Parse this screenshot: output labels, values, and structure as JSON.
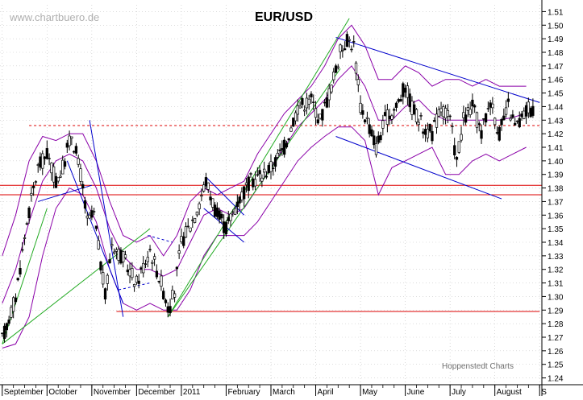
{
  "watermark": "www.chartbuero.de",
  "credit": "Hoppenstedt Charts",
  "chart_data": {
    "type": "candlestick",
    "title": "EUR/USD",
    "xlabel": "",
    "ylabel": "",
    "ylim": [
      1.235,
      1.515
    ],
    "y_ticks": [
      1.24,
      1.25,
      1.26,
      1.27,
      1.28,
      1.29,
      1.3,
      1.31,
      1.32,
      1.33,
      1.34,
      1.35,
      1.36,
      1.37,
      1.38,
      1.39,
      1.4,
      1.41,
      1.42,
      1.43,
      1.44,
      1.45,
      1.46,
      1.47,
      1.48,
      1.49,
      1.5,
      1.51
    ],
    "x_months": [
      {
        "label": "September",
        "t": 0
      },
      {
        "label": "October",
        "t": 1
      },
      {
        "label": "November",
        "t": 2
      },
      {
        "label": "December",
        "t": 3
      },
      {
        "label": "2011",
        "t": 4
      },
      {
        "label": "February",
        "t": 5
      },
      {
        "label": "March",
        "t": 6
      },
      {
        "label": "April",
        "t": 7
      },
      {
        "label": "May",
        "t": 8
      },
      {
        "label": "June",
        "t": 9
      },
      {
        "label": "July",
        "t": 10
      },
      {
        "label": "August",
        "t": 11
      },
      {
        "label": "S",
        "t": 12
      }
    ],
    "x_range": [
      -0.05,
      12.05
    ],
    "grid": true,
    "price_path": [
      [
        0.0,
        1.268
      ],
      [
        0.3,
        1.3
      ],
      [
        0.55,
        1.355
      ],
      [
        0.8,
        1.395
      ],
      [
        1.0,
        1.405
      ],
      [
        1.2,
        1.385
      ],
      [
        1.35,
        1.395
      ],
      [
        1.55,
        1.42
      ],
      [
        1.75,
        1.39
      ],
      [
        1.9,
        1.355
      ],
      [
        2.05,
        1.36
      ],
      [
        2.3,
        1.3
      ],
      [
        2.45,
        1.34
      ],
      [
        2.75,
        1.325
      ],
      [
        3.0,
        1.31
      ],
      [
        3.3,
        1.335
      ],
      [
        3.55,
        1.31
      ],
      [
        3.72,
        1.29
      ],
      [
        3.85,
        1.305
      ],
      [
        4.0,
        1.34
      ],
      [
        4.3,
        1.36
      ],
      [
        4.55,
        1.385
      ],
      [
        4.8,
        1.36
      ],
      [
        5.0,
        1.35
      ],
      [
        5.25,
        1.37
      ],
      [
        5.55,
        1.385
      ],
      [
        5.8,
        1.39
      ],
      [
        6.0,
        1.395
      ],
      [
        6.3,
        1.41
      ],
      [
        6.6,
        1.44
      ],
      [
        6.9,
        1.445
      ],
      [
        7.1,
        1.43
      ],
      [
        7.35,
        1.455
      ],
      [
        7.55,
        1.48
      ],
      [
        7.7,
        1.49
      ],
      [
        7.85,
        1.485
      ],
      [
        8.0,
        1.44
      ],
      [
        8.15,
        1.43
      ],
      [
        8.35,
        1.41
      ],
      [
        8.55,
        1.43
      ],
      [
        8.8,
        1.44
      ],
      [
        9.0,
        1.455
      ],
      [
        9.15,
        1.44
      ],
      [
        9.4,
        1.425
      ],
      [
        9.6,
        1.42
      ],
      [
        9.8,
        1.44
      ],
      [
        10.0,
        1.43
      ],
      [
        10.15,
        1.4
      ],
      [
        10.3,
        1.43
      ],
      [
        10.5,
        1.44
      ],
      [
        10.7,
        1.42
      ],
      [
        10.9,
        1.445
      ],
      [
        11.1,
        1.42
      ],
      [
        11.3,
        1.44
      ],
      [
        11.45,
        1.425
      ],
      [
        11.6,
        1.43
      ],
      [
        11.75,
        1.44
      ],
      [
        11.9,
        1.435
      ]
    ],
    "upper_band": [
      [
        0.0,
        1.33
      ],
      [
        0.3,
        1.36
      ],
      [
        0.6,
        1.4
      ],
      [
        0.9,
        1.418
      ],
      [
        1.2,
        1.415
      ],
      [
        1.5,
        1.42
      ],
      [
        1.8,
        1.42
      ],
      [
        2.1,
        1.4
      ],
      [
        2.4,
        1.37
      ],
      [
        2.7,
        1.345
      ],
      [
        3.0,
        1.34
      ],
      [
        3.3,
        1.345
      ],
      [
        3.6,
        1.33
      ],
      [
        3.9,
        1.345
      ],
      [
        4.2,
        1.37
      ],
      [
        4.5,
        1.38
      ],
      [
        4.8,
        1.375
      ],
      [
        5.1,
        1.38
      ],
      [
        5.4,
        1.385
      ],
      [
        5.7,
        1.405
      ],
      [
        6.0,
        1.42
      ],
      [
        6.3,
        1.435
      ],
      [
        6.6,
        1.445
      ],
      [
        6.9,
        1.455
      ],
      [
        7.2,
        1.47
      ],
      [
        7.5,
        1.49
      ],
      [
        7.8,
        1.5
      ],
      [
        8.1,
        1.485
      ],
      [
        8.4,
        1.46
      ],
      [
        8.7,
        1.46
      ],
      [
        9.0,
        1.47
      ],
      [
        9.3,
        1.465
      ],
      [
        9.6,
        1.455
      ],
      [
        9.9,
        1.46
      ],
      [
        10.2,
        1.46
      ],
      [
        10.5,
        1.455
      ],
      [
        10.8,
        1.46
      ],
      [
        11.1,
        1.455
      ],
      [
        11.4,
        1.455
      ],
      [
        11.7,
        1.455
      ]
    ],
    "middle_band": [
      [
        0.0,
        1.295
      ],
      [
        0.3,
        1.32
      ],
      [
        0.6,
        1.355
      ],
      [
        0.9,
        1.385
      ],
      [
        1.2,
        1.4
      ],
      [
        1.5,
        1.405
      ],
      [
        1.8,
        1.4
      ],
      [
        2.1,
        1.38
      ],
      [
        2.4,
        1.35
      ],
      [
        2.7,
        1.33
      ],
      [
        3.0,
        1.32
      ],
      [
        3.3,
        1.32
      ],
      [
        3.6,
        1.315
      ],
      [
        3.9,
        1.32
      ],
      [
        4.2,
        1.34
      ],
      [
        4.5,
        1.36
      ],
      [
        4.8,
        1.365
      ],
      [
        5.1,
        1.36
      ],
      [
        5.4,
        1.365
      ],
      [
        5.7,
        1.38
      ],
      [
        6.0,
        1.395
      ],
      [
        6.3,
        1.41
      ],
      [
        6.6,
        1.425
      ],
      [
        6.9,
        1.435
      ],
      [
        7.2,
        1.445
      ],
      [
        7.5,
        1.46
      ],
      [
        7.8,
        1.47
      ],
      [
        8.1,
        1.455
      ],
      [
        8.4,
        1.43
      ],
      [
        8.7,
        1.43
      ],
      [
        9.0,
        1.44
      ],
      [
        9.3,
        1.445
      ],
      [
        9.6,
        1.435
      ],
      [
        9.9,
        1.43
      ],
      [
        10.2,
        1.43
      ],
      [
        10.5,
        1.43
      ],
      [
        10.8,
        1.43
      ],
      [
        11.1,
        1.43
      ],
      [
        11.4,
        1.432
      ],
      [
        11.7,
        1.435
      ]
    ],
    "lower_band": [
      [
        0.0,
        1.262
      ],
      [
        0.3,
        1.265
      ],
      [
        0.6,
        1.285
      ],
      [
        0.9,
        1.33
      ],
      [
        1.2,
        1.365
      ],
      [
        1.5,
        1.38
      ],
      [
        1.8,
        1.375
      ],
      [
        2.1,
        1.355
      ],
      [
        2.4,
        1.32
      ],
      [
        2.7,
        1.295
      ],
      [
        3.0,
        1.29
      ],
      [
        3.3,
        1.295
      ],
      [
        3.6,
        1.29
      ],
      [
        3.9,
        1.29
      ],
      [
        4.2,
        1.305
      ],
      [
        4.5,
        1.33
      ],
      [
        4.8,
        1.345
      ],
      [
        5.1,
        1.345
      ],
      [
        5.4,
        1.345
      ],
      [
        5.7,
        1.355
      ],
      [
        6.0,
        1.37
      ],
      [
        6.3,
        1.385
      ],
      [
        6.6,
        1.4
      ],
      [
        6.9,
        1.41
      ],
      [
        7.2,
        1.418
      ],
      [
        7.5,
        1.425
      ],
      [
        7.8,
        1.425
      ],
      [
        8.1,
        1.415
      ],
      [
        8.4,
        1.375
      ],
      [
        8.7,
        1.395
      ],
      [
        9.0,
        1.4
      ],
      [
        9.3,
        1.405
      ],
      [
        9.6,
        1.41
      ],
      [
        9.9,
        1.39
      ],
      [
        10.2,
        1.39
      ],
      [
        10.5,
        1.4
      ],
      [
        10.8,
        1.405
      ],
      [
        11.1,
        1.4
      ],
      [
        11.4,
        1.405
      ],
      [
        11.7,
        1.41
      ]
    ],
    "horizontal_levels": [
      {
        "y": 1.426,
        "color": "#dd0000",
        "style": "dashed",
        "x_from": 0.6,
        "x_to": 12.0
      },
      {
        "y": 1.382,
        "color": "#dd0000",
        "style": "solid",
        "x_from": -0.05,
        "x_to": 12.05
      },
      {
        "y": 1.375,
        "color": "#dd0000",
        "style": "solid",
        "x_from": -0.05,
        "x_to": 12.05
      },
      {
        "y": 1.289,
        "color": "#dd0000",
        "style": "solid",
        "x_from": 2.55,
        "x_to": 12.0
      }
    ],
    "trend_lines": [
      {
        "color": "#22aa22",
        "points": [
          [
            0.0,
            1.265
          ],
          [
            1.0,
            1.365
          ]
        ]
      },
      {
        "color": "#22aa22",
        "points": [
          [
            0.0,
            1.265
          ],
          [
            3.3,
            1.35
          ]
        ]
      },
      {
        "color": "#22aa22",
        "points": [
          [
            3.7,
            1.285
          ],
          [
            7.75,
            1.505
          ]
        ]
      },
      {
        "color": "#22aa22",
        "points": [
          [
            3.7,
            1.285
          ],
          [
            7.55,
            1.468
          ]
        ]
      },
      {
        "color": "#0000cc",
        "points": [
          [
            1.95,
            1.43
          ],
          [
            2.7,
            1.285
          ]
        ]
      },
      {
        "color": "#0000cc",
        "points": [
          [
            1.45,
            1.4
          ],
          [
            2.7,
            1.295
          ]
        ]
      },
      {
        "color": "#0000cc",
        "points": [
          [
            0.8,
            1.37
          ],
          [
            2.0,
            1.382
          ]
        ]
      },
      {
        "color": "#0000cc",
        "points": [
          [
            4.55,
            1.388
          ],
          [
            5.4,
            1.36
          ]
        ]
      },
      {
        "color": "#0000cc",
        "points": [
          [
            4.5,
            1.365
          ],
          [
            5.4,
            1.34
          ]
        ]
      },
      {
        "color": "#0000cc",
        "points": [
          [
            7.45,
            1.491
          ],
          [
            12.0,
            1.443
          ]
        ]
      },
      {
        "color": "#0000cc",
        "points": [
          [
            7.45,
            1.418
          ],
          [
            11.15,
            1.372
          ]
        ]
      },
      {
        "color": "#0000cc",
        "points": [
          [
            3.25,
            1.345
          ],
          [
            3.8,
            1.34
          ]
        ],
        "style": "dashed"
      },
      {
        "color": "#0000cc",
        "points": [
          [
            2.6,
            1.305
          ],
          [
            3.3,
            1.31
          ]
        ],
        "style": "dashed"
      }
    ]
  }
}
